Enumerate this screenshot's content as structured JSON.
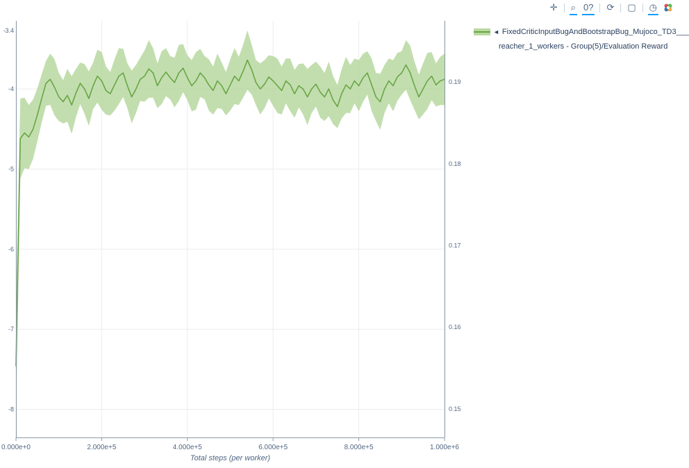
{
  "toolbar": {
    "items": [
      {
        "name": "pan-icon",
        "glyph": "✛",
        "active": false,
        "divider_before": false
      },
      {
        "name": "zoom-icon",
        "glyph": "⌕",
        "active": true,
        "divider_before": true
      },
      {
        "name": "zoom-reset-icon",
        "glyph": "0?",
        "active": true,
        "divider_before": false
      },
      {
        "name": "autoscale-icon",
        "glyph": "⟳",
        "active": false,
        "divider_before": true
      },
      {
        "name": "reset-axes-icon",
        "glyph": "▢",
        "active": false,
        "divider_before": true
      },
      {
        "name": "hover-closest-icon",
        "glyph": "◷",
        "active": true,
        "divider_before": true
      }
    ],
    "logo_name": "plotly-logo-icon",
    "logo_colors": [
      "#d9534f",
      "#5cb85c",
      "#337ab7",
      "#f0ad4e"
    ]
  },
  "legend": {
    "toggle_glyph": "◄",
    "line1": "FixedCriticInputBugAndBootstrapBug_Mujoco_TD3___",
    "line2": "reacher_1_workers - Group(5)/Evaluation Reward",
    "swatch_band_color": "#b9d9a1",
    "swatch_line_color": "#69a546"
  },
  "chart_data": {
    "type": "line",
    "title": "",
    "xlabel": "Total steps (per worker)",
    "legend_position": "top-right-outside",
    "grid": true,
    "xlim": [
      0,
      1000000
    ],
    "left_ylim": [
      -8.35,
      -3.15
    ],
    "right_ylim": [
      0.1465,
      0.1975
    ],
    "x_ticks": [
      {
        "v": 0,
        "label": "0.000e+0"
      },
      {
        "v": 200000,
        "label": "2.000e+5"
      },
      {
        "v": 400000,
        "label": "4.000e+5"
      },
      {
        "v": 600000,
        "label": "6.000e+5"
      },
      {
        "v": 800000,
        "label": "8.000e+5"
      },
      {
        "v": 1000000,
        "label": "1.000e+6"
      }
    ],
    "left_y_ticks": [
      {
        "v": -4,
        "label": "-4"
      },
      {
        "v": -5,
        "label": "-5"
      },
      {
        "v": -6,
        "label": "-6"
      },
      {
        "v": -7,
        "label": "-7"
      },
      {
        "v": -8,
        "label": "-8"
      }
    ],
    "left_partial_top_label": "-3.4",
    "right_y_ticks": [
      {
        "v": 0.19,
        "label": "0.19"
      },
      {
        "v": 0.18,
        "label": "0.18"
      },
      {
        "v": 0.17,
        "label": "0.17"
      },
      {
        "v": 0.16,
        "label": "0.16"
      },
      {
        "v": 0.15,
        "label": "0.15"
      }
    ],
    "series": [
      {
        "name": "FixedCriticInputBugAndBootstrapBug_Mujoco_TD3___reacher_1_workers - Group(5)/Evaluation Reward",
        "color": "#69a546",
        "band_color": "#b3d69a",
        "x_step": 10000,
        "mean": [
          -7.46,
          -4.62,
          -4.55,
          -4.6,
          -4.5,
          -4.32,
          -4.12,
          -3.93,
          -3.88,
          -3.98,
          -4.1,
          -4.16,
          -4.08,
          -4.2,
          -4.05,
          -3.93,
          -4.0,
          -4.12,
          -3.96,
          -3.84,
          -3.9,
          -4.02,
          -4.06,
          -3.95,
          -3.84,
          -3.8,
          -3.96,
          -4.1,
          -4.0,
          -3.88,
          -3.84,
          -3.75,
          -3.8,
          -3.96,
          -3.86,
          -3.79,
          -3.86,
          -3.92,
          -3.8,
          -3.74,
          -3.86,
          -3.96,
          -3.9,
          -3.8,
          -3.86,
          -3.95,
          -4.02,
          -3.9,
          -3.96,
          -4.06,
          -3.95,
          -3.84,
          -3.9,
          -3.78,
          -3.64,
          -3.76,
          -3.92,
          -4.0,
          -3.94,
          -3.85,
          -3.9,
          -3.96,
          -4.02,
          -3.9,
          -3.95,
          -4.06,
          -3.96,
          -4.0,
          -4.1,
          -4.0,
          -3.94,
          -4.04,
          -4.1,
          -4.0,
          -4.14,
          -4.22,
          -4.06,
          -3.95,
          -4.0,
          -3.9,
          -3.96,
          -3.86,
          -3.8,
          -3.95,
          -4.1,
          -4.16,
          -4.0,
          -3.9,
          -3.96,
          -3.85,
          -3.8,
          -3.7,
          -3.8,
          -3.96,
          -4.1,
          -4.0,
          -3.9,
          -3.84,
          -3.95,
          -3.9,
          -3.88
        ],
        "band": [
          0.72,
          0.5,
          0.44,
          0.4,
          0.37,
          0.33,
          0.3,
          0.28,
          0.32,
          0.35,
          0.3,
          0.27,
          0.33,
          0.36,
          0.3,
          0.26,
          0.31,
          0.34,
          0.29,
          0.33,
          0.36,
          0.3,
          0.27,
          0.32,
          0.35,
          0.3,
          0.28,
          0.33,
          0.3,
          0.27,
          0.32,
          0.36,
          0.31,
          0.28,
          0.33,
          0.3,
          0.27,
          0.31,
          0.35,
          0.3,
          0.28,
          0.32,
          0.36,
          0.3,
          0.27,
          0.32,
          0.3,
          0.34,
          0.29,
          0.27,
          0.32,
          0.35,
          0.3,
          0.33,
          0.37,
          0.31,
          0.28,
          0.32,
          0.3,
          0.27,
          0.31,
          0.34,
          0.3,
          0.28,
          0.33,
          0.3,
          0.27,
          0.32,
          0.35,
          0.3,
          0.28,
          0.32,
          0.3,
          0.34,
          0.3,
          0.27,
          0.31,
          0.35,
          0.3,
          0.28,
          0.32,
          0.3,
          0.27,
          0.33,
          0.3,
          0.35,
          0.3,
          0.28,
          0.32,
          0.3,
          0.27,
          0.31,
          0.34,
          0.3,
          0.28,
          0.32,
          0.35,
          0.3,
          0.27,
          0.3,
          0.32
        ]
      }
    ],
    "colors": {
      "grid": "#ececec",
      "axis": "#8b99a8",
      "tick_text": "#506784"
    }
  }
}
